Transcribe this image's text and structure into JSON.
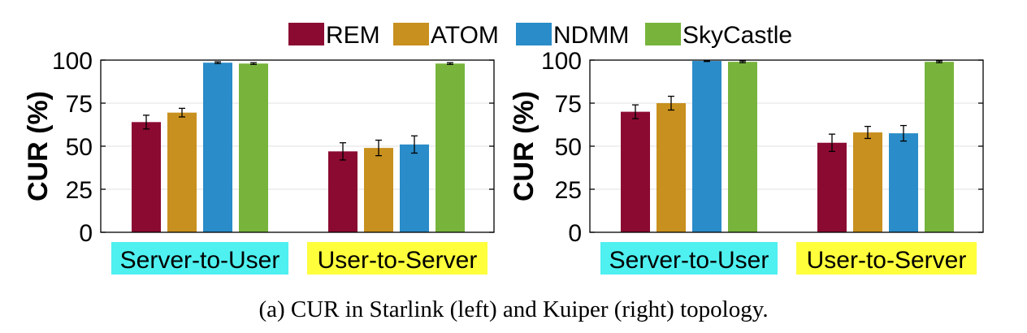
{
  "legend": [
    {
      "name": "REM",
      "color": "#8b0a32"
    },
    {
      "name": "ATOM",
      "color": "#c8901e"
    },
    {
      "name": "NDMM",
      "color": "#2a8cc8"
    },
    {
      "name": "SkyCastle",
      "color": "#78b43c"
    }
  ],
  "caption": "(a) CUR in Starlink (left) and Kuiper (right) topology.",
  "category_highlights": [
    "#4ff0f0",
    "#ffff3c"
  ],
  "chart_data": [
    {
      "type": "bar",
      "topology": "Starlink",
      "ylabel": "CUR (%)",
      "ylim": [
        0,
        100
      ],
      "yticks": [
        0,
        25,
        50,
        75,
        100
      ],
      "grid": true,
      "categories": [
        "Server-to-User",
        "User-to-Server"
      ],
      "series": [
        {
          "name": "REM",
          "values": [
            64,
            47
          ],
          "errors": [
            4,
            5
          ]
        },
        {
          "name": "ATOM",
          "values": [
            69.5,
            49
          ],
          "errors": [
            2.5,
            4.5
          ]
        },
        {
          "name": "NDMM",
          "values": [
            98.5,
            51
          ],
          "errors": [
            0.5,
            5
          ]
        },
        {
          "name": "SkyCastle",
          "values": [
            98,
            98
          ],
          "errors": [
            0.5,
            0.5
          ]
        }
      ]
    },
    {
      "type": "bar",
      "topology": "Kuiper",
      "ylabel": "CUR (%)",
      "ylim": [
        0,
        100
      ],
      "yticks": [
        0,
        25,
        50,
        75,
        100
      ],
      "grid": true,
      "categories": [
        "Server-to-User",
        "User-to-Server"
      ],
      "series": [
        {
          "name": "REM",
          "values": [
            70,
            52
          ],
          "errors": [
            4,
            5
          ]
        },
        {
          "name": "ATOM",
          "values": [
            75,
            58
          ],
          "errors": [
            4,
            3.5
          ]
        },
        {
          "name": "NDMM",
          "values": [
            99.5,
            57.5
          ],
          "errors": [
            0.3,
            4.5
          ]
        },
        {
          "name": "SkyCastle",
          "values": [
            99,
            99
          ],
          "errors": [
            0.5,
            0.5
          ]
        }
      ]
    }
  ]
}
